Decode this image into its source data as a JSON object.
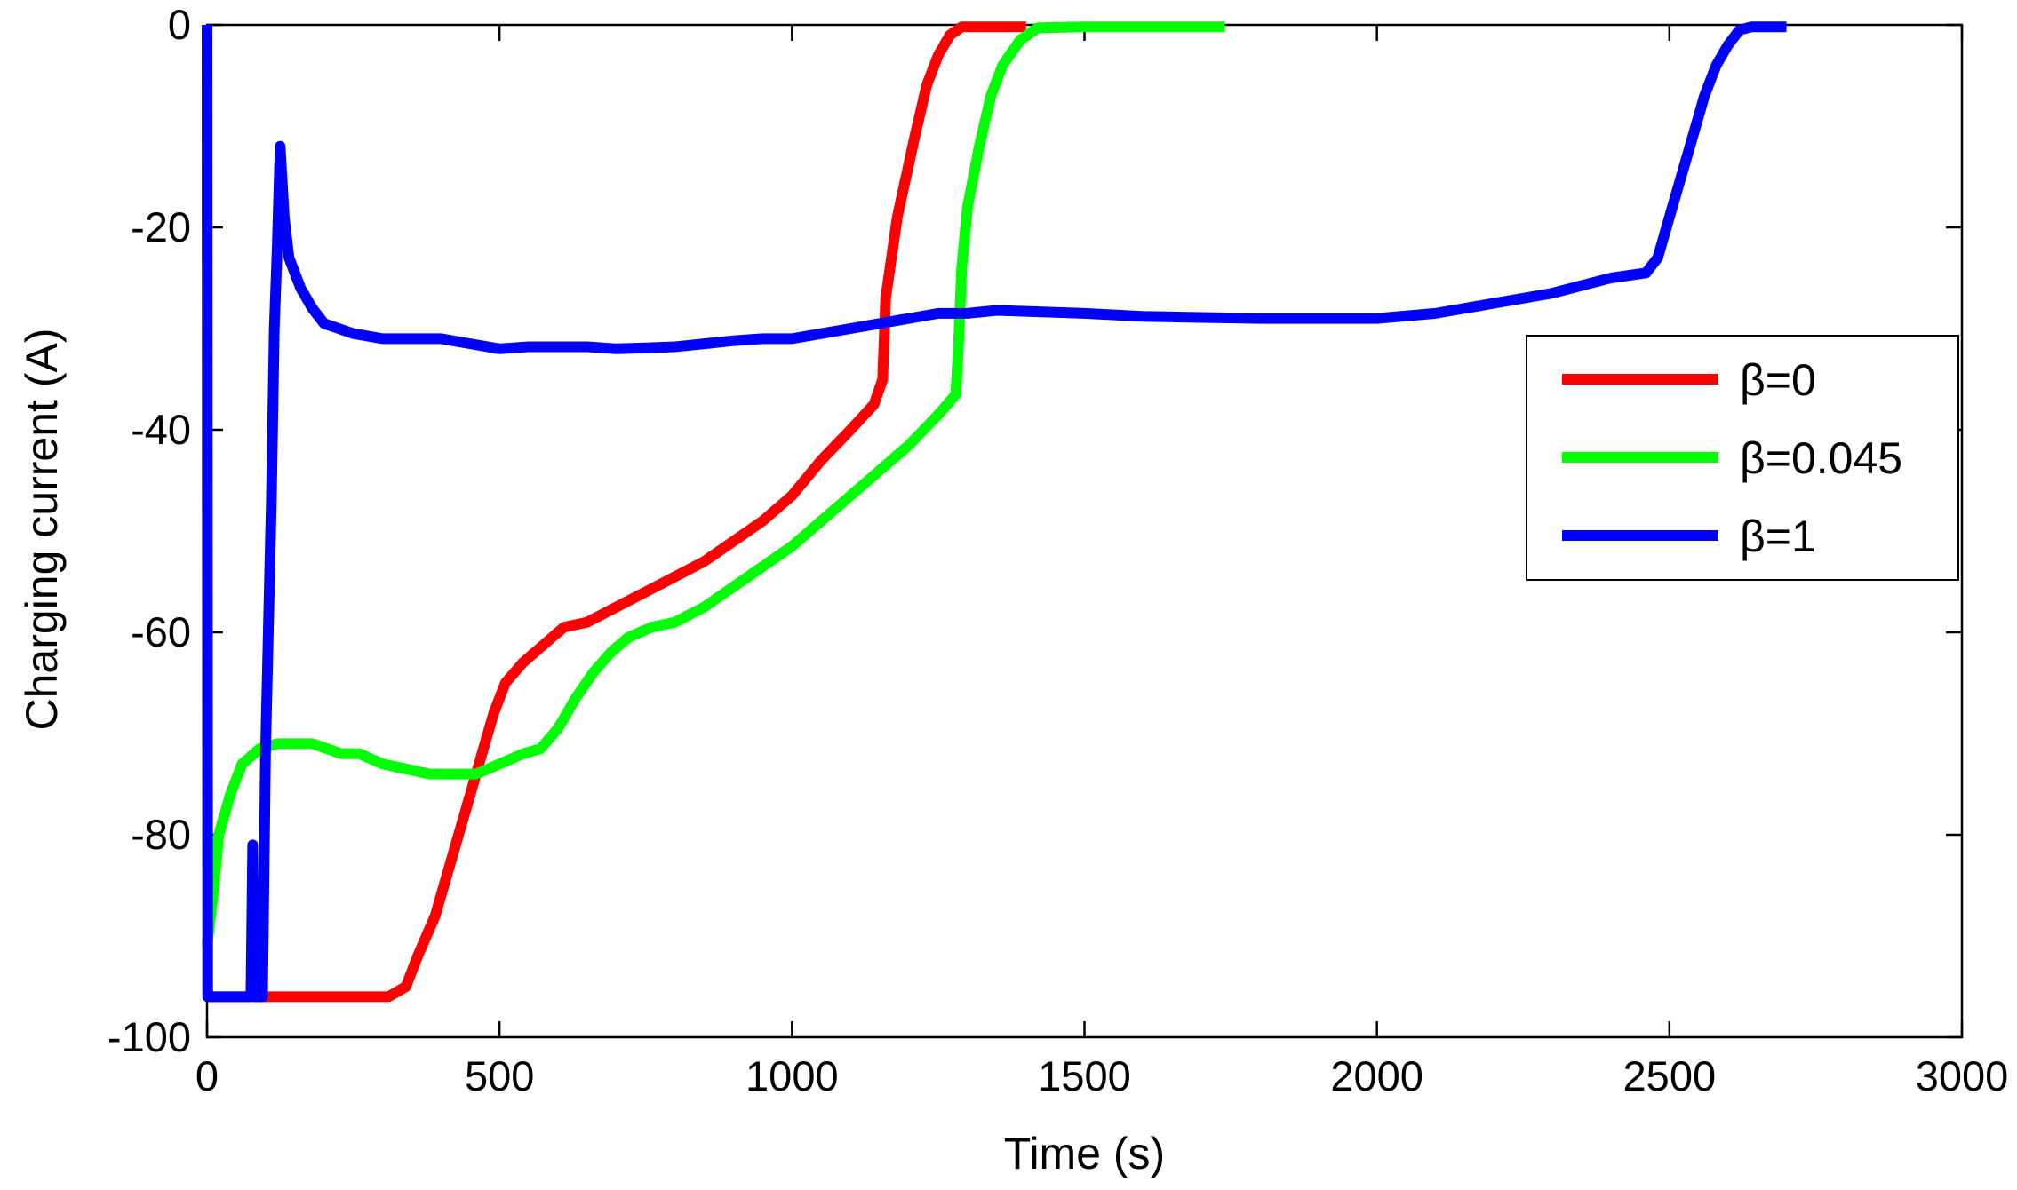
{
  "chart_data": {
    "type": "line",
    "title": "",
    "xlabel": "Time (s)",
    "ylabel": "Charging current (A)",
    "xlim": [
      0,
      3000
    ],
    "ylim": [
      -100,
      0
    ],
    "xticks": [
      0,
      500,
      1000,
      1500,
      2000,
      2500,
      3000
    ],
    "xtick_labels": [
      "0",
      "500",
      "1000",
      "1500",
      "2000",
      "2500",
      "3000"
    ],
    "yticks": [
      -100,
      -80,
      -60,
      -40,
      -20,
      0
    ],
    "ytick_labels": [
      "-100",
      "-80",
      "-60",
      "-40",
      "-20",
      "0"
    ],
    "grid": false,
    "legend_position": "right",
    "series": [
      {
        "name": "β=0",
        "color": "#ff0000",
        "points": [
          [
            0,
            -96
          ],
          [
            100,
            -96
          ],
          [
            200,
            -96
          ],
          [
            310,
            -96
          ],
          [
            340,
            -95
          ],
          [
            360,
            -92
          ],
          [
            390,
            -88
          ],
          [
            420,
            -82
          ],
          [
            450,
            -76
          ],
          [
            470,
            -72
          ],
          [
            490,
            -68
          ],
          [
            510,
            -65
          ],
          [
            540,
            -63
          ],
          [
            580,
            -61
          ],
          [
            610,
            -59.5
          ],
          [
            650,
            -59
          ],
          [
            700,
            -57.5
          ],
          [
            750,
            -56
          ],
          [
            800,
            -54.5
          ],
          [
            850,
            -53
          ],
          [
            900,
            -51
          ],
          [
            950,
            -49
          ],
          [
            1000,
            -46.5
          ],
          [
            1050,
            -43
          ],
          [
            1100,
            -40
          ],
          [
            1140,
            -37.5
          ],
          [
            1155,
            -35
          ],
          [
            1160,
            -27
          ],
          [
            1170,
            -23
          ],
          [
            1180,
            -19
          ],
          [
            1195,
            -15
          ],
          [
            1210,
            -11
          ],
          [
            1230,
            -6
          ],
          [
            1250,
            -3
          ],
          [
            1270,
            -1
          ],
          [
            1290,
            -0.2
          ],
          [
            1400,
            -0.2
          ]
        ]
      },
      {
        "name": "β=0.045",
        "color": "#00ff00",
        "points": [
          [
            0,
            -91
          ],
          [
            10,
            -86
          ],
          [
            20,
            -80
          ],
          [
            40,
            -76
          ],
          [
            60,
            -73
          ],
          [
            90,
            -71.5
          ],
          [
            120,
            -71
          ],
          [
            180,
            -71
          ],
          [
            230,
            -72
          ],
          [
            260,
            -72
          ],
          [
            300,
            -73
          ],
          [
            340,
            -73.5
          ],
          [
            380,
            -74
          ],
          [
            420,
            -74
          ],
          [
            460,
            -74
          ],
          [
            500,
            -73
          ],
          [
            540,
            -72
          ],
          [
            570,
            -71.5
          ],
          [
            600,
            -69.5
          ],
          [
            630,
            -66.5
          ],
          [
            660,
            -64
          ],
          [
            690,
            -62
          ],
          [
            720,
            -60.5
          ],
          [
            760,
            -59.5
          ],
          [
            800,
            -59
          ],
          [
            850,
            -57.5
          ],
          [
            900,
            -55.5
          ],
          [
            950,
            -53.5
          ],
          [
            1000,
            -51.5
          ],
          [
            1050,
            -49
          ],
          [
            1100,
            -46.5
          ],
          [
            1150,
            -44
          ],
          [
            1200,
            -41.5
          ],
          [
            1250,
            -38.5
          ],
          [
            1280,
            -36.5
          ],
          [
            1285,
            -31
          ],
          [
            1290,
            -24
          ],
          [
            1300,
            -18
          ],
          [
            1320,
            -12
          ],
          [
            1340,
            -7
          ],
          [
            1360,
            -4
          ],
          [
            1390,
            -1.5
          ],
          [
            1420,
            -0.3
          ],
          [
            1500,
            -0.2
          ],
          [
            1740,
            -0.2
          ]
        ]
      },
      {
        "name": "β=1",
        "color": "#0000ff",
        "points": [
          [
            0,
            0
          ],
          [
            1,
            -96
          ],
          [
            50,
            -96
          ],
          [
            75,
            -96
          ],
          [
            78,
            -81
          ],
          [
            82,
            -96
          ],
          [
            95,
            -96
          ],
          [
            100,
            -72
          ],
          [
            110,
            -47
          ],
          [
            115,
            -30
          ],
          [
            120,
            -22
          ],
          [
            125,
            -12
          ],
          [
            132,
            -19
          ],
          [
            140,
            -23
          ],
          [
            160,
            -26
          ],
          [
            180,
            -28
          ],
          [
            200,
            -29.5
          ],
          [
            250,
            -30.5
          ],
          [
            300,
            -31
          ],
          [
            350,
            -31
          ],
          [
            400,
            -31
          ],
          [
            450,
            -31.5
          ],
          [
            500,
            -32
          ],
          [
            550,
            -31.8
          ],
          [
            600,
            -31.8
          ],
          [
            650,
            -31.8
          ],
          [
            700,
            -32
          ],
          [
            750,
            -31.9
          ],
          [
            800,
            -31.8
          ],
          [
            850,
            -31.5
          ],
          [
            900,
            -31.2
          ],
          [
            950,
            -31
          ],
          [
            1000,
            -31
          ],
          [
            1050,
            -30.5
          ],
          [
            1100,
            -30
          ],
          [
            1150,
            -29.5
          ],
          [
            1200,
            -29
          ],
          [
            1250,
            -28.5
          ],
          [
            1300,
            -28.5
          ],
          [
            1350,
            -28.2
          ],
          [
            1400,
            -28.3
          ],
          [
            1500,
            -28.5
          ],
          [
            1600,
            -28.8
          ],
          [
            1700,
            -28.9
          ],
          [
            1800,
            -29
          ],
          [
            1900,
            -29
          ],
          [
            2000,
            -29
          ],
          [
            2100,
            -28.5
          ],
          [
            2200,
            -27.5
          ],
          [
            2300,
            -26.5
          ],
          [
            2400,
            -25
          ],
          [
            2460,
            -24.5
          ],
          [
            2480,
            -23
          ],
          [
            2500,
            -19
          ],
          [
            2520,
            -15
          ],
          [
            2540,
            -11
          ],
          [
            2560,
            -7
          ],
          [
            2580,
            -4
          ],
          [
            2600,
            -2
          ],
          [
            2620,
            -0.5
          ],
          [
            2640,
            -0.2
          ],
          [
            2700,
            -0.2
          ]
        ]
      }
    ]
  }
}
